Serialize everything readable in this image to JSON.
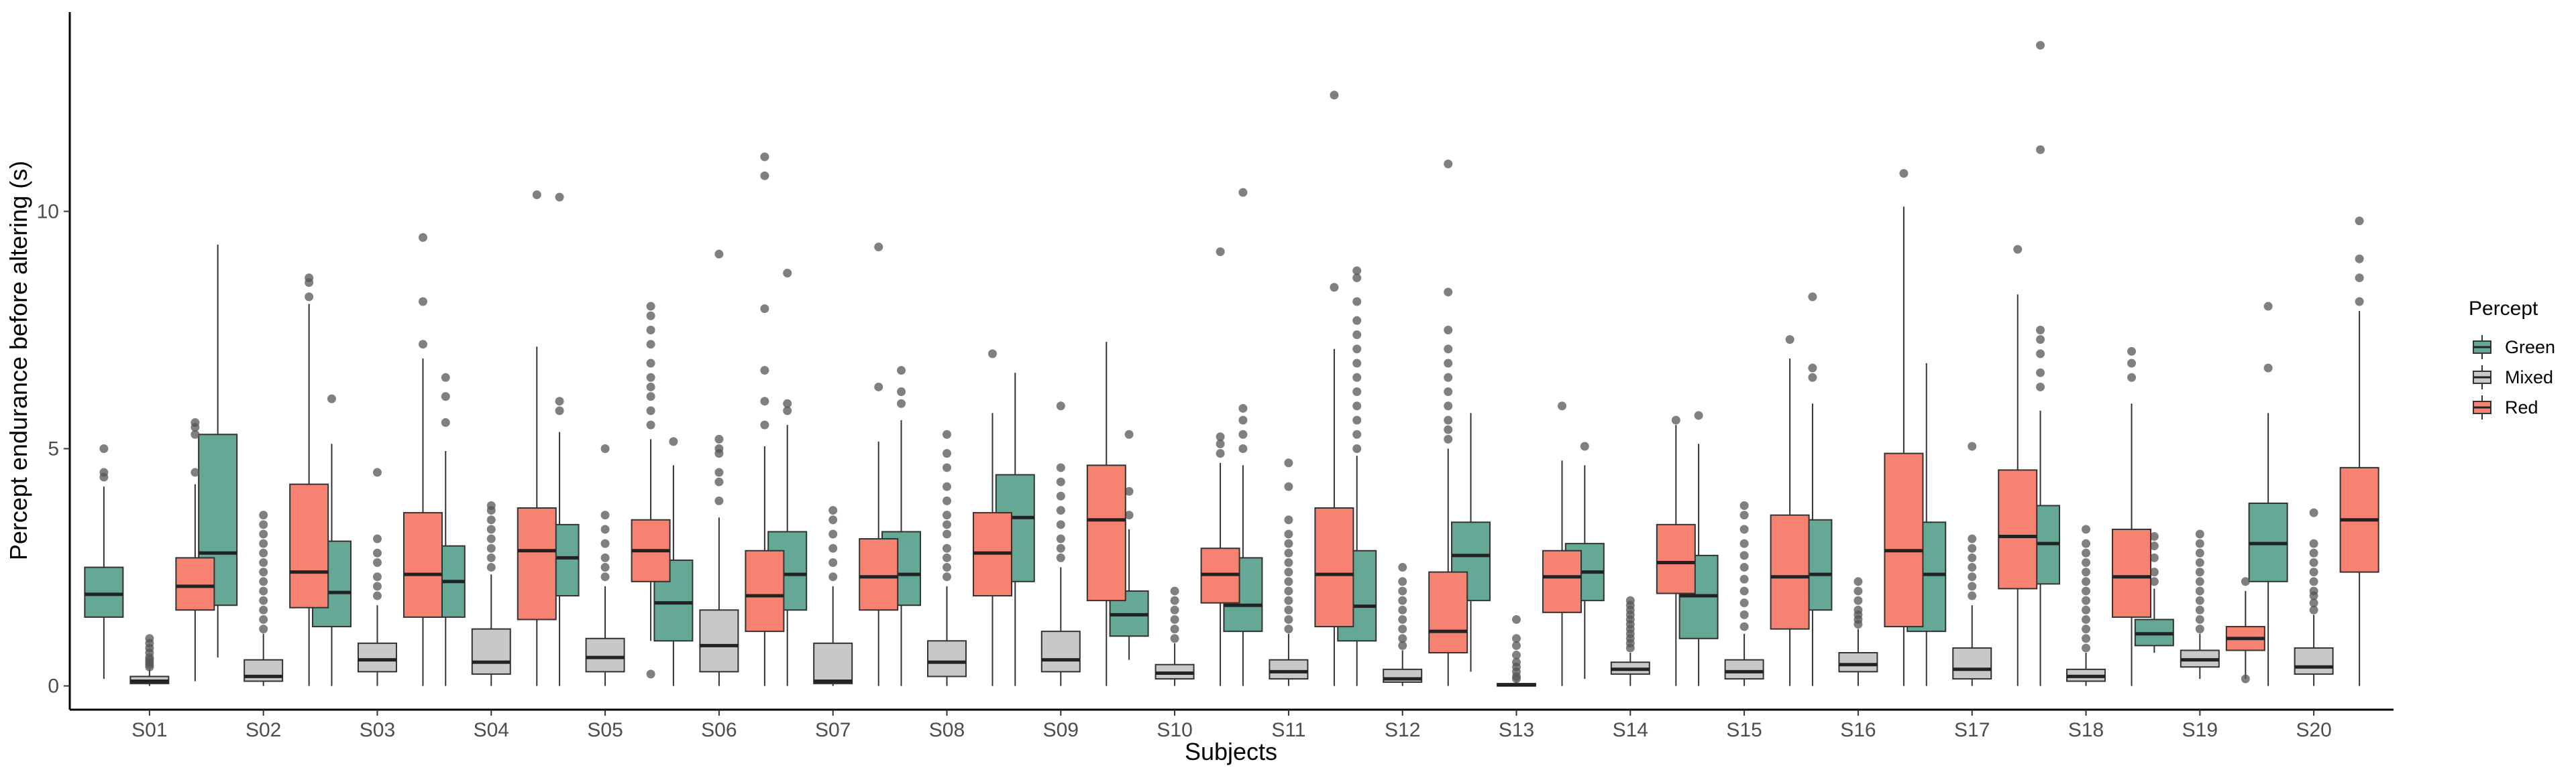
{
  "chart_data": {
    "type": "boxplot",
    "xlabel": "Subjects",
    "ylabel": "Percept endurance before altering (s)",
    "ylim": [
      -0.5,
      14.2
    ],
    "yticks": [
      0,
      5,
      10
    ],
    "grid": false,
    "legend": {
      "title": "Percept",
      "position": "right"
    },
    "categories": [
      "S01",
      "S02",
      "S03",
      "S04",
      "S05",
      "S06",
      "S07",
      "S08",
      "S09",
      "S10",
      "S11",
      "S12",
      "S13",
      "S14",
      "S15",
      "S16",
      "S17",
      "S18",
      "S19",
      "S20"
    ],
    "series": [
      {
        "name": "Green",
        "color": "#66a896",
        "boxes": [
          {
            "whisker_low": 0.15,
            "q1": 1.45,
            "median": 1.93,
            "q3": 2.5,
            "whisker_high": 4.2,
            "outliers": [
              4.4,
              4.5,
              5.0
            ]
          },
          {
            "whisker_low": 0.6,
            "q1": 1.7,
            "median": 2.8,
            "q3": 5.3,
            "whisker_high": 9.3,
            "outliers": []
          },
          {
            "whisker_low": 0.0,
            "q1": 1.25,
            "median": 1.97,
            "q3": 3.05,
            "whisker_high": 5.1,
            "outliers": [
              6.05
            ]
          },
          {
            "whisker_low": 0.0,
            "q1": 1.45,
            "median": 2.2,
            "q3": 2.95,
            "whisker_high": 4.95,
            "outliers": [
              5.55,
              6.1,
              6.5
            ]
          },
          {
            "whisker_low": 0.0,
            "q1": 1.9,
            "median": 2.7,
            "q3": 3.4,
            "whisker_high": 5.35,
            "outliers": [
              5.8,
              6.0,
              10.3
            ]
          },
          {
            "whisker_low": 0.0,
            "q1": 0.95,
            "median": 1.75,
            "q3": 2.65,
            "whisker_high": 4.65,
            "outliers": [
              5.15
            ]
          },
          {
            "whisker_low": 0.0,
            "q1": 1.6,
            "median": 2.35,
            "q3": 3.25,
            "whisker_high": 5.5,
            "outliers": [
              5.8,
              5.95,
              8.7
            ]
          },
          {
            "whisker_low": 0.0,
            "q1": 1.7,
            "median": 2.35,
            "q3": 3.25,
            "whisker_high": 5.6,
            "outliers": [
              5.95,
              6.2,
              6.65
            ]
          },
          {
            "whisker_low": 0.0,
            "q1": 2.2,
            "median": 3.55,
            "q3": 4.45,
            "whisker_high": 6.6,
            "outliers": []
          },
          {
            "whisker_low": 0.55,
            "q1": 1.05,
            "median": 1.5,
            "q3": 2.0,
            "whisker_high": 3.3,
            "outliers": [
              3.6,
              4.1,
              5.3
            ]
          },
          {
            "whisker_low": 0.0,
            "q1": 1.15,
            "median": 1.7,
            "q3": 2.7,
            "whisker_high": 4.65,
            "outliers": [
              5.0,
              5.3,
              5.6,
              5.85,
              10.4
            ]
          },
          {
            "whisker_low": 0.0,
            "q1": 0.95,
            "median": 1.68,
            "q3": 2.85,
            "whisker_high": 4.85,
            "outliers": [
              5.0,
              5.3,
              5.6,
              5.9,
              6.2,
              6.5,
              6.8,
              7.1,
              7.4,
              7.7,
              8.1,
              8.6,
              8.75
            ]
          },
          {
            "whisker_low": 0.3,
            "q1": 1.8,
            "median": 2.75,
            "q3": 3.45,
            "whisker_high": 5.75,
            "outliers": []
          },
          {
            "whisker_low": 0.15,
            "q1": 1.8,
            "median": 2.4,
            "q3": 3.0,
            "whisker_high": 4.65,
            "outliers": [
              5.05
            ]
          },
          {
            "whisker_low": 0.0,
            "q1": 1.0,
            "median": 1.9,
            "q3": 2.75,
            "whisker_high": 5.1,
            "outliers": [
              5.7
            ]
          },
          {
            "whisker_low": 0.0,
            "q1": 1.6,
            "median": 2.35,
            "q3": 3.5,
            "whisker_high": 5.95,
            "outliers": [
              6.5,
              6.7,
              8.2
            ]
          },
          {
            "whisker_low": 0.0,
            "q1": 1.15,
            "median": 2.35,
            "q3": 3.45,
            "whisker_high": 6.8,
            "outliers": []
          },
          {
            "whisker_low": 0.0,
            "q1": 2.15,
            "median": 3.0,
            "q3": 3.8,
            "whisker_high": 5.8,
            "outliers": [
              6.3,
              6.6,
              7.0,
              7.3,
              7.5,
              11.3,
              13.5
            ]
          },
          {
            "whisker_low": 0.7,
            "q1": 0.85,
            "median": 1.1,
            "q3": 1.4,
            "whisker_high": 2.05,
            "outliers": [
              2.2,
              2.4,
              2.7,
              2.95,
              3.15
            ]
          },
          {
            "whisker_low": 0.0,
            "q1": 2.2,
            "median": 3.0,
            "q3": 3.85,
            "whisker_high": 5.75,
            "outliers": [
              6.7,
              8.0
            ]
          }
        ]
      },
      {
        "name": "Mixed",
        "color": "#c8c8c8",
        "boxes": [
          {
            "whisker_low": 0.0,
            "q1": 0.05,
            "median": 0.1,
            "q3": 0.2,
            "whisker_high": 0.35,
            "outliers": [
              0.4,
              0.45,
              0.5,
              0.55,
              0.6,
              0.7,
              0.8,
              0.9,
              1.0
            ]
          },
          {
            "whisker_low": 0.0,
            "q1": 0.1,
            "median": 0.2,
            "q3": 0.55,
            "whisker_high": 1.1,
            "outliers": [
              1.2,
              1.4,
              1.6,
              1.8,
              2.0,
              2.2,
              2.4,
              2.6,
              2.8,
              3.0,
              3.2,
              3.4,
              3.6
            ]
          },
          {
            "whisker_low": 0.0,
            "q1": 0.3,
            "median": 0.55,
            "q3": 0.9,
            "whisker_high": 1.7,
            "outliers": [
              1.9,
              2.1,
              2.3,
              2.6,
              2.8,
              3.1,
              4.5
            ]
          },
          {
            "whisker_low": 0.0,
            "q1": 0.25,
            "median": 0.5,
            "q3": 1.2,
            "whisker_high": 2.35,
            "outliers": [
              2.5,
              2.7,
              2.9,
              3.1,
              3.3,
              3.5,
              3.7,
              3.8
            ]
          },
          {
            "whisker_low": 0.0,
            "q1": 0.3,
            "median": 0.6,
            "q3": 1.0,
            "whisker_high": 2.1,
            "outliers": [
              2.3,
              2.5,
              2.7,
              3.0,
              3.3,
              3.6,
              5.0
            ]
          },
          {
            "whisker_low": 0.0,
            "q1": 0.3,
            "median": 0.85,
            "q3": 1.6,
            "whisker_high": 3.55,
            "outliers": [
              3.9,
              4.3,
              4.5,
              4.9,
              5.0,
              5.2,
              9.1
            ]
          },
          {
            "whisker_low": 0.0,
            "q1": 0.05,
            "median": 0.1,
            "q3": 0.9,
            "whisker_high": 2.1,
            "outliers": [
              2.3,
              2.6,
              2.9,
              3.2,
              3.5,
              3.7
            ]
          },
          {
            "whisker_low": 0.0,
            "q1": 0.2,
            "median": 0.5,
            "q3": 0.95,
            "whisker_high": 2.1,
            "outliers": [
              2.3,
              2.5,
              2.7,
              2.9,
              3.2,
              3.4,
              3.6,
              3.9,
              4.2,
              4.6,
              4.9,
              5.3
            ]
          },
          {
            "whisker_low": 0.0,
            "q1": 0.3,
            "median": 0.55,
            "q3": 1.15,
            "whisker_high": 2.5,
            "outliers": [
              2.7,
              2.9,
              3.1,
              3.4,
              3.7,
              4.0,
              4.3,
              4.6,
              5.9
            ]
          },
          {
            "whisker_low": 0.0,
            "q1": 0.15,
            "median": 0.27,
            "q3": 0.45,
            "whisker_high": 0.9,
            "outliers": [
              1.0,
              1.2,
              1.4,
              1.6,
              1.8,
              2.0
            ]
          },
          {
            "whisker_low": 0.0,
            "q1": 0.15,
            "median": 0.3,
            "q3": 0.55,
            "whisker_high": 1.1,
            "outliers": [
              1.2,
              1.4,
              1.6,
              1.8,
              2.0,
              2.2,
              2.4,
              2.6,
              2.8,
              3.0,
              3.2,
              3.5,
              4.2,
              4.7
            ]
          },
          {
            "whisker_low": 0.0,
            "q1": 0.08,
            "median": 0.15,
            "q3": 0.35,
            "whisker_high": 0.75,
            "outliers": [
              0.85,
              1.0,
              1.2,
              1.4,
              1.6,
              1.8,
              2.0,
              2.2,
              2.5
            ]
          },
          {
            "whisker_low": 0.0,
            "q1": 0.0,
            "median": 0.02,
            "q3": 0.05,
            "whisker_high": 0.1,
            "outliers": [
              0.15,
              0.2,
              0.3,
              0.4,
              0.5,
              0.65,
              0.85,
              1.0,
              1.4
            ]
          },
          {
            "whisker_low": 0.0,
            "q1": 0.25,
            "median": 0.35,
            "q3": 0.5,
            "whisker_high": 0.7,
            "outliers": [
              0.8,
              0.9,
              1.0,
              1.1,
              1.2,
              1.3,
              1.4,
              1.5,
              1.6,
              1.7,
              1.8
            ]
          },
          {
            "whisker_low": 0.0,
            "q1": 0.15,
            "median": 0.3,
            "q3": 0.55,
            "whisker_high": 1.1,
            "outliers": [
              1.25,
              1.5,
              1.75,
              2.0,
              2.25,
              2.5,
              2.75,
              3.0,
              3.3,
              3.6,
              3.8
            ]
          },
          {
            "whisker_low": 0.0,
            "q1": 0.3,
            "median": 0.45,
            "q3": 0.7,
            "whisker_high": 1.2,
            "outliers": [
              1.3,
              1.4,
              1.5,
              1.6,
              1.8,
              2.0,
              2.2
            ]
          },
          {
            "whisker_low": 0.0,
            "q1": 0.15,
            "median": 0.35,
            "q3": 0.8,
            "whisker_high": 1.7,
            "outliers": [
              1.9,
              2.1,
              2.3,
              2.5,
              2.7,
              2.9,
              3.1,
              5.05
            ]
          },
          {
            "whisker_low": 0.0,
            "q1": 0.1,
            "median": 0.2,
            "q3": 0.35,
            "whisker_high": 0.7,
            "outliers": [
              0.8,
              1.0,
              1.2,
              1.4,
              1.6,
              1.8,
              2.0,
              2.2,
              2.4,
              2.6,
              2.8,
              3.0,
              3.3
            ]
          },
          {
            "whisker_low": 0.15,
            "q1": 0.4,
            "median": 0.55,
            "q3": 0.75,
            "whisker_high": 1.1,
            "outliers": [
              1.2,
              1.4,
              1.6,
              1.8,
              2.0,
              2.2,
              2.4,
              2.6,
              2.8,
              3.0,
              3.2
            ]
          },
          {
            "whisker_low": 0.0,
            "q1": 0.25,
            "median": 0.4,
            "q3": 0.8,
            "whisker_high": 1.5,
            "outliers": [
              1.6,
              1.75,
              1.9,
              2.0,
              2.2,
              2.4,
              2.6,
              2.8,
              3.0,
              3.65
            ]
          }
        ]
      },
      {
        "name": "Red",
        "color": "#f68371",
        "boxes": [
          {
            "whisker_low": 0.1,
            "q1": 1.6,
            "median": 2.1,
            "q3": 2.7,
            "whisker_high": 4.25,
            "outliers": [
              4.5,
              5.3,
              5.45,
              5.55
            ]
          },
          {
            "whisker_low": 0.0,
            "q1": 1.65,
            "median": 2.4,
            "q3": 4.25,
            "whisker_high": 8.05,
            "outliers": [
              8.2,
              8.5,
              8.6
            ]
          },
          {
            "whisker_low": 0.0,
            "q1": 1.45,
            "median": 2.35,
            "q3": 3.65,
            "whisker_high": 6.9,
            "outliers": [
              7.2,
              8.1,
              9.45
            ]
          },
          {
            "whisker_low": 0.0,
            "q1": 1.4,
            "median": 2.85,
            "q3": 3.75,
            "whisker_high": 7.15,
            "outliers": [
              10.35
            ]
          },
          {
            "whisker_low": 0.95,
            "q1": 2.2,
            "median": 2.85,
            "q3": 3.5,
            "whisker_high": 5.2,
            "outliers": [
              0.25,
              5.5,
              5.8,
              6.1,
              6.3,
              6.5,
              6.8,
              7.2,
              7.5,
              7.8,
              8.0
            ]
          },
          {
            "whisker_low": 0.0,
            "q1": 1.15,
            "median": 1.9,
            "q3": 2.85,
            "whisker_high": 5.05,
            "outliers": [
              5.5,
              6.0,
              6.65,
              7.95,
              10.75,
              11.15
            ]
          },
          {
            "whisker_low": 0.0,
            "q1": 1.6,
            "median": 2.3,
            "q3": 3.1,
            "whisker_high": 5.15,
            "outliers": [
              6.3,
              9.25
            ]
          },
          {
            "whisker_low": 0.0,
            "q1": 1.9,
            "median": 2.8,
            "q3": 3.65,
            "whisker_high": 5.75,
            "outliers": [
              7.0
            ]
          },
          {
            "whisker_low": 0.0,
            "q1": 1.8,
            "median": 3.5,
            "q3": 4.65,
            "whisker_high": 7.25,
            "outliers": []
          },
          {
            "whisker_low": 0.0,
            "q1": 1.75,
            "median": 2.35,
            "q3": 2.9,
            "whisker_high": 4.7,
            "outliers": [
              4.9,
              5.1,
              5.25,
              9.15
            ]
          },
          {
            "whisker_low": 0.0,
            "q1": 1.25,
            "median": 2.35,
            "q3": 3.75,
            "whisker_high": 7.1,
            "outliers": [
              8.4,
              12.45
            ]
          },
          {
            "whisker_low": 0.0,
            "q1": 0.7,
            "median": 1.15,
            "q3": 2.4,
            "whisker_high": 5.0,
            "outliers": [
              5.2,
              5.4,
              5.6,
              5.9,
              6.2,
              6.5,
              6.8,
              7.1,
              7.5,
              8.3,
              11.0
            ]
          },
          {
            "whisker_low": 0.0,
            "q1": 1.55,
            "median": 2.3,
            "q3": 2.85,
            "whisker_high": 4.75,
            "outliers": [
              5.9
            ]
          },
          {
            "whisker_low": 0.0,
            "q1": 1.95,
            "median": 2.6,
            "q3": 3.4,
            "whisker_high": 5.5,
            "outliers": [
              5.6
            ]
          },
          {
            "whisker_low": 0.0,
            "q1": 1.2,
            "median": 2.3,
            "q3": 3.6,
            "whisker_high": 6.9,
            "outliers": [
              7.3
            ]
          },
          {
            "whisker_low": 0.0,
            "q1": 1.25,
            "median": 2.85,
            "q3": 4.9,
            "whisker_high": 10.1,
            "outliers": [
              10.8
            ]
          },
          {
            "whisker_low": 0.0,
            "q1": 2.05,
            "median": 3.15,
            "q3": 4.55,
            "whisker_high": 8.25,
            "outliers": [
              9.2
            ]
          },
          {
            "whisker_low": 0.0,
            "q1": 1.45,
            "median": 2.3,
            "q3": 3.3,
            "whisker_high": 5.95,
            "outliers": [
              6.5,
              6.8,
              7.05
            ]
          },
          {
            "whisker_low": 0.15,
            "q1": 0.75,
            "median": 1.0,
            "q3": 1.25,
            "whisker_high": 2.0,
            "outliers": [
              0.15,
              2.2
            ]
          },
          {
            "whisker_low": 0.0,
            "q1": 2.4,
            "median": 3.5,
            "q3": 4.6,
            "whisker_high": 7.9,
            "outliers": [
              8.1,
              8.6,
              9.0,
              9.8
            ]
          }
        ]
      }
    ]
  }
}
